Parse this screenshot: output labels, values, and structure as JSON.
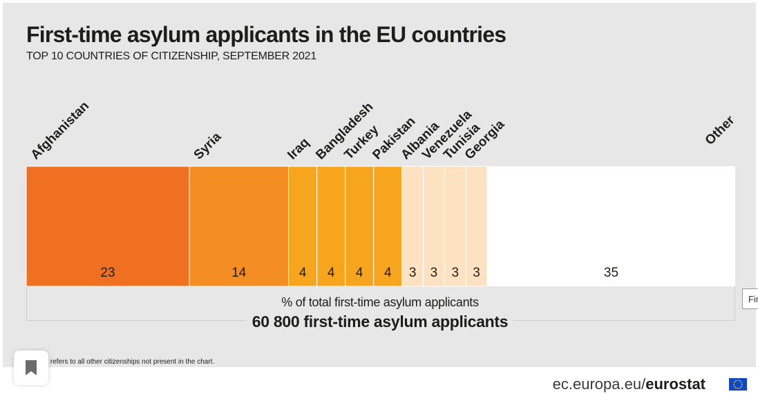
{
  "header": {
    "title": "First-time asylum applicants in the EU countries",
    "subtitle": "TOP 10 COUNTRIES OF CITIZENSHIP, SEPTEMBER 2021"
  },
  "chart_data": {
    "type": "bar",
    "orientation": "horizontal-stacked",
    "title": "First-time asylum applicants in the EU countries",
    "subtitle": "TOP 10 COUNTRIES OF CITIZENSHIP, SEPTEMBER 2021",
    "categories": [
      "Afghanistan",
      "Syria",
      "Iraq",
      "Bangladesh",
      "Turkey",
      "Pakistan",
      "Albania",
      "Venezuela",
      "Tunisia",
      "Georgia",
      "Other"
    ],
    "values": [
      23,
      14,
      4,
      4,
      4,
      4,
      3,
      3,
      3,
      3,
      35
    ],
    "colors": [
      "#f07022",
      "#f48e22",
      "#f8a51e",
      "#f8a51e",
      "#f8a51e",
      "#f8a51e",
      "#fde2c1",
      "#fde2c1",
      "#fde2c1",
      "#fde2c1",
      "#ffffff"
    ],
    "value_label": "% of total first-time asylum applicants",
    "total_label": "60 800 first-time asylum applicants",
    "footnote": "\"Other\" refers to all other citizenships not present in the chart."
  },
  "footer": {
    "source_prefix": "ec.europa.eu/",
    "source_brand": "eurostat",
    "flag_color": "#0e47cb",
    "bookmark_icon": "bookmark-icon",
    "tooltip_text": "Fir"
  }
}
